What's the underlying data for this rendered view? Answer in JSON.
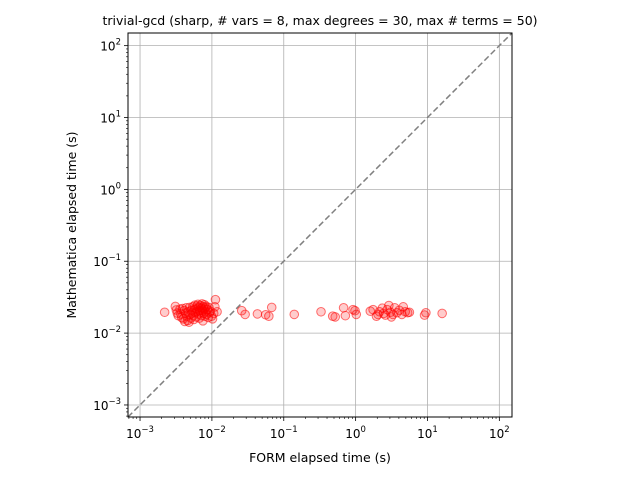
{
  "chart_data": {
    "type": "scatter",
    "title": "trivial-gcd (sharp, # vars = 8, max degrees = 30, max # terms = 50)",
    "xlabel": "FORM elapsed time (s)",
    "ylabel": "Mathematica elapsed time (s)",
    "xscale": "log",
    "yscale": "log",
    "xlim": [
      0.00068,
      150
    ],
    "ylim": [
      0.00068,
      150
    ],
    "xticks": [
      {
        "value": 0.001,
        "base": "10",
        "exp": "−3"
      },
      {
        "value": 0.01,
        "base": "10",
        "exp": "−2"
      },
      {
        "value": 0.1,
        "base": "10",
        "exp": "−1"
      },
      {
        "value": 1,
        "base": "10",
        "exp": "0"
      },
      {
        "value": 10,
        "base": "10",
        "exp": "1"
      },
      {
        "value": 100,
        "base": "10",
        "exp": "2"
      }
    ],
    "yticks": [
      {
        "value": 0.001,
        "base": "10",
        "exp": "−3"
      },
      {
        "value": 0.01,
        "base": "10",
        "exp": "−2"
      },
      {
        "value": 0.1,
        "base": "10",
        "exp": "−1"
      },
      {
        "value": 1,
        "base": "10",
        "exp": "0"
      },
      {
        "value": 10,
        "base": "10",
        "exp": "1"
      },
      {
        "value": 100,
        "base": "10",
        "exp": "2"
      }
    ],
    "grid": true,
    "reference_line": {
      "kind": "y = x",
      "style": "dashed",
      "color": "#808080"
    },
    "marker": {
      "shape": "circle",
      "edge_color": "#ff0000",
      "face_color": "#ff0000",
      "alpha": 0.35
    },
    "points": [
      [
        0.0022,
        0.0195
      ],
      [
        0.0031,
        0.0235
      ],
      [
        0.0032,
        0.021
      ],
      [
        0.0033,
        0.019
      ],
      [
        0.0034,
        0.0175
      ],
      [
        0.0036,
        0.0215
      ],
      [
        0.0037,
        0.0185
      ],
      [
        0.0038,
        0.0165
      ],
      [
        0.0039,
        0.022
      ],
      [
        0.004,
        0.0158
      ],
      [
        0.0041,
        0.0205
      ],
      [
        0.0042,
        0.0145
      ],
      [
        0.0043,
        0.019
      ],
      [
        0.0044,
        0.0225
      ],
      [
        0.0045,
        0.0172
      ],
      [
        0.0046,
        0.015
      ],
      [
        0.0047,
        0.0198
      ],
      [
        0.0048,
        0.0142
      ],
      [
        0.0049,
        0.0228
      ],
      [
        0.005,
        0.0182
      ],
      [
        0.0051,
        0.0162
      ],
      [
        0.0052,
        0.0208
      ],
      [
        0.0053,
        0.019
      ],
      [
        0.0054,
        0.0232
      ],
      [
        0.0055,
        0.0175
      ],
      [
        0.0056,
        0.0155
      ],
      [
        0.0057,
        0.0212
      ],
      [
        0.0058,
        0.0245
      ],
      [
        0.0059,
        0.0192
      ],
      [
        0.006,
        0.0218
      ],
      [
        0.0061,
        0.0168
      ],
      [
        0.0062,
        0.0238
      ],
      [
        0.0063,
        0.0202
      ],
      [
        0.0064,
        0.0252
      ],
      [
        0.0065,
        0.0185
      ],
      [
        0.0066,
        0.0228
      ],
      [
        0.0067,
        0.0162
      ],
      [
        0.0068,
        0.0205
      ],
      [
        0.0069,
        0.0242
      ],
      [
        0.007,
        0.0195
      ],
      [
        0.0071,
        0.0222
      ],
      [
        0.0072,
        0.0175
      ],
      [
        0.0073,
        0.0255
      ],
      [
        0.0074,
        0.0208
      ],
      [
        0.0075,
        0.0148
      ],
      [
        0.0076,
        0.0232
      ],
      [
        0.0077,
        0.0188
      ],
      [
        0.0078,
        0.0215
      ],
      [
        0.0079,
        0.0248
      ],
      [
        0.008,
        0.0172
      ],
      [
        0.0081,
        0.0225
      ],
      [
        0.0082,
        0.0198
      ],
      [
        0.0083,
        0.0235
      ],
      [
        0.0085,
        0.0182
      ],
      [
        0.0087,
        0.0212
      ],
      [
        0.0089,
        0.0165
      ],
      [
        0.0091,
        0.0228
      ],
      [
        0.0093,
        0.0192
      ],
      [
        0.0095,
        0.0202
      ],
      [
        0.0099,
        0.0172
      ],
      [
        0.0102,
        0.0158
      ],
      [
        0.0106,
        0.0188
      ],
      [
        0.011,
        0.0232
      ],
      [
        0.0112,
        0.0292
      ],
      [
        0.0118,
        0.0198
      ],
      [
        0.026,
        0.0205
      ],
      [
        0.029,
        0.0182
      ],
      [
        0.043,
        0.0185
      ],
      [
        0.056,
        0.018
      ],
      [
        0.062,
        0.0172
      ],
      [
        0.068,
        0.0228
      ],
      [
        0.14,
        0.0182
      ],
      [
        0.33,
        0.0198
      ],
      [
        0.48,
        0.0172
      ],
      [
        0.52,
        0.0168
      ],
      [
        0.68,
        0.0225
      ],
      [
        0.72,
        0.0175
      ],
      [
        0.92,
        0.0212
      ],
      [
        0.98,
        0.0205
      ],
      [
        1.02,
        0.0182
      ],
      [
        1.6,
        0.0202
      ],
      [
        1.75,
        0.0212
      ],
      [
        1.95,
        0.0172
      ],
      [
        2.05,
        0.0182
      ],
      [
        2.15,
        0.0198
      ],
      [
        2.35,
        0.0222
      ],
      [
        2.45,
        0.0188
      ],
      [
        2.6,
        0.0178
      ],
      [
        2.75,
        0.0212
      ],
      [
        2.9,
        0.0242
      ],
      [
        3.05,
        0.0195
      ],
      [
        3.15,
        0.0168
      ],
      [
        3.3,
        0.0182
      ],
      [
        3.5,
        0.0225
      ],
      [
        3.75,
        0.0192
      ],
      [
        4.05,
        0.0208
      ],
      [
        4.4,
        0.0182
      ],
      [
        4.6,
        0.0232
      ],
      [
        4.9,
        0.0198
      ],
      [
        5.3,
        0.0192
      ],
      [
        5.6,
        0.0195
      ],
      [
        9.1,
        0.0178
      ],
      [
        9.5,
        0.0192
      ],
      [
        16.0,
        0.0188
      ]
    ]
  }
}
